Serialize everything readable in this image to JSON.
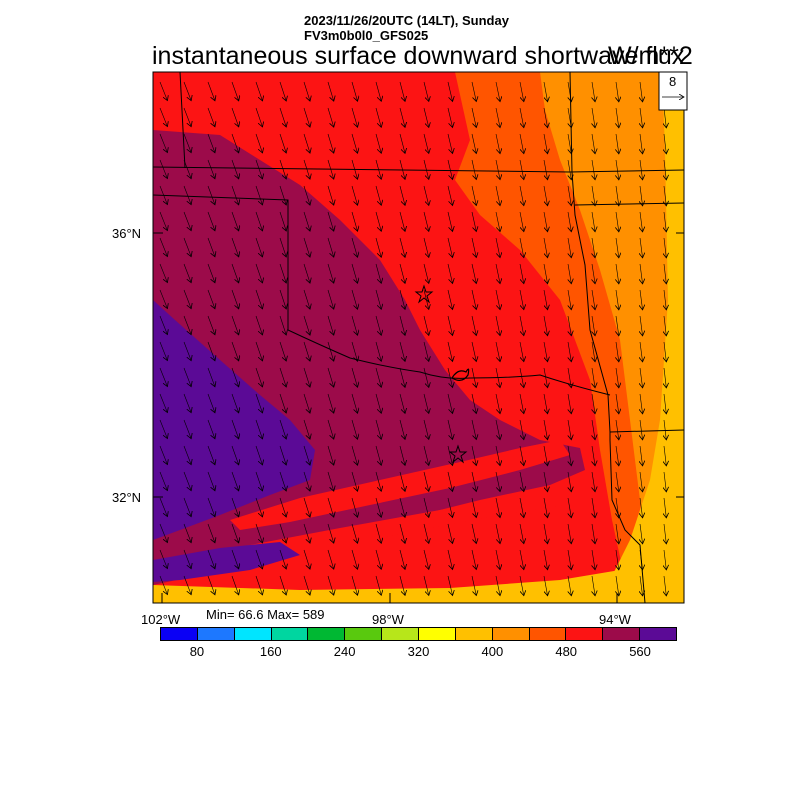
{
  "header": {
    "datetime": "2023/11/26/20UTC (14LT), Sunday",
    "model": "FV3m0b0l0_GFS025"
  },
  "title": "instantaneous surface downward shortwave flux",
  "units": "W/m**2",
  "vector_ref": {
    "label": "8"
  },
  "axes": {
    "lat_labels": [
      "36°N",
      "32°N"
    ],
    "lon_labels": [
      "102°W",
      "98°W",
      "94°W"
    ]
  },
  "stats": "Min= 66.6 Max= 589",
  "colorbar": {
    "colors": [
      "#0a00f5",
      "#1d78ff",
      "#00e5ff",
      "#00d6a0",
      "#00b833",
      "#59c90e",
      "#b7e61a",
      "#ffff00",
      "#ffc000",
      "#ff9000",
      "#ff5500",
      "#fc1414",
      "#9c0b4a",
      "#5b0a96"
    ],
    "tick_labels": [
      "80",
      "160",
      "240",
      "320",
      "400",
      "480",
      "560"
    ]
  },
  "map_colors": {
    "level_480": "#fc1414",
    "level_440": "#ff5500",
    "level_400": "#ff9000",
    "level_360": "#ffc000",
    "level_520": "#9c0b4a",
    "level_560": "#5b0a96"
  }
}
